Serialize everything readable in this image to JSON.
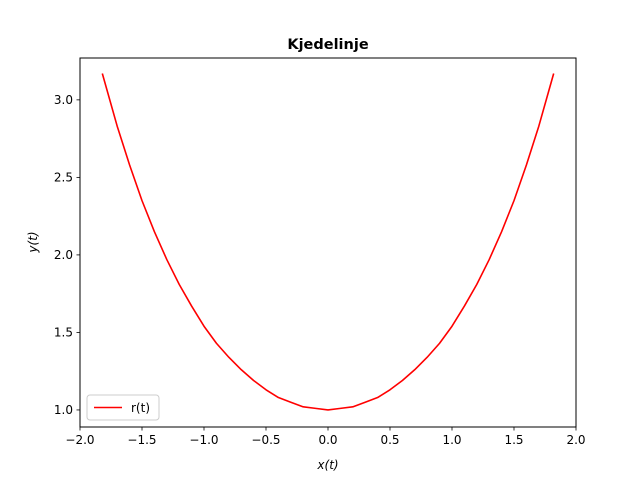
{
  "chart_data": {
    "type": "line",
    "title": "Kjedelinje",
    "xlabel": "x(t)",
    "ylabel": "y(t)",
    "xlim": [
      -2.0,
      2.0
    ],
    "ylim": [
      0.89,
      3.27
    ],
    "xticks": [
      -2.0,
      -1.5,
      -1.0,
      -0.5,
      0.0,
      0.5,
      1.0,
      1.5,
      2.0
    ],
    "xtick_labels": [
      "−2.0",
      "−1.5",
      "−1.0",
      "−0.5",
      "0.0",
      "0.5",
      "1.0",
      "1.5",
      "2.0"
    ],
    "yticks": [
      1.0,
      1.5,
      2.0,
      2.5,
      3.0
    ],
    "ytick_labels": [
      "1.0",
      "1.5",
      "2.0",
      "2.5",
      "3.0"
    ],
    "grid": false,
    "legend": "lower-left",
    "series": [
      {
        "name": "r(t)",
        "color": "#ff0000",
        "x": [
          -1.82,
          -1.7,
          -1.6,
          -1.5,
          -1.4,
          -1.3,
          -1.2,
          -1.1,
          -1.0,
          -0.9,
          -0.8,
          -0.7,
          -0.6,
          -0.5,
          -0.4,
          -0.3,
          -0.2,
          -0.1,
          0.0,
          0.1,
          0.2,
          0.3,
          0.4,
          0.5,
          0.6,
          0.7,
          0.8,
          0.9,
          1.0,
          1.1,
          1.2,
          1.3,
          1.4,
          1.5,
          1.6,
          1.7,
          1.82
        ],
        "y": [
          3.17,
          2.83,
          2.58,
          2.35,
          2.15,
          1.97,
          1.81,
          1.67,
          1.54,
          1.43,
          1.34,
          1.26,
          1.19,
          1.13,
          1.08,
          1.05,
          1.02,
          1.01,
          1.0,
          1.01,
          1.02,
          1.05,
          1.08,
          1.13,
          1.19,
          1.26,
          1.34,
          1.43,
          1.54,
          1.67,
          1.81,
          1.97,
          2.15,
          2.35,
          2.58,
          2.83,
          3.17
        ]
      }
    ]
  }
}
